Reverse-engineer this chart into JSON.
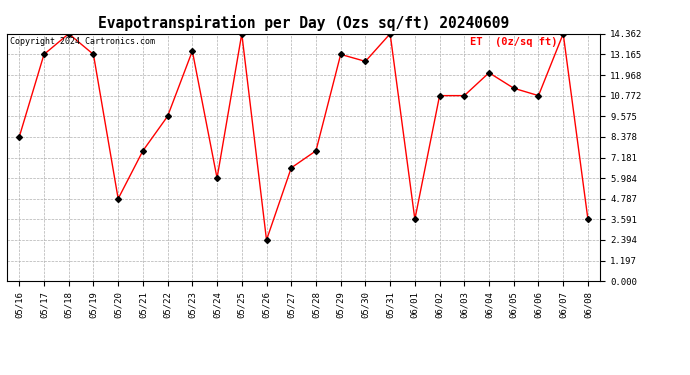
{
  "title": "Evapotranspiration per Day (Ozs sq/ft) 20240609",
  "copyright": "Copyright 2024 Cartronics.com",
  "legend_label": "ET  (0z/sq ft)",
  "x_labels": [
    "05/16",
    "05/17",
    "05/18",
    "05/19",
    "05/20",
    "05/21",
    "05/22",
    "05/23",
    "05/24",
    "05/25",
    "05/26",
    "05/27",
    "05/28",
    "05/29",
    "05/30",
    "05/31",
    "06/01",
    "06/02",
    "06/03",
    "06/04",
    "06/05",
    "06/06",
    "06/07",
    "06/08"
  ],
  "y_values": [
    8.378,
    13.165,
    14.362,
    13.165,
    4.787,
    7.57,
    9.575,
    13.362,
    5.984,
    14.362,
    2.394,
    6.58,
    7.57,
    13.165,
    12.76,
    14.362,
    3.591,
    10.772,
    10.772,
    12.1,
    11.2,
    10.772,
    14.362,
    3.591
  ],
  "y_ticks": [
    0.0,
    1.197,
    2.394,
    3.591,
    4.787,
    5.984,
    7.181,
    8.378,
    9.575,
    10.772,
    11.968,
    13.165,
    14.362
  ],
  "y_min": 0.0,
  "y_max": 14.362,
  "line_color": "red",
  "marker_color": "black",
  "bg_color": "white",
  "grid_color": "#b0b0b0",
  "title_fontsize": 10.5,
  "copyright_fontsize": 6.0,
  "legend_fontsize": 7.5,
  "legend_color": "red",
  "tick_fontsize": 6.5,
  "marker_size": 3.0,
  "line_width": 1.0
}
